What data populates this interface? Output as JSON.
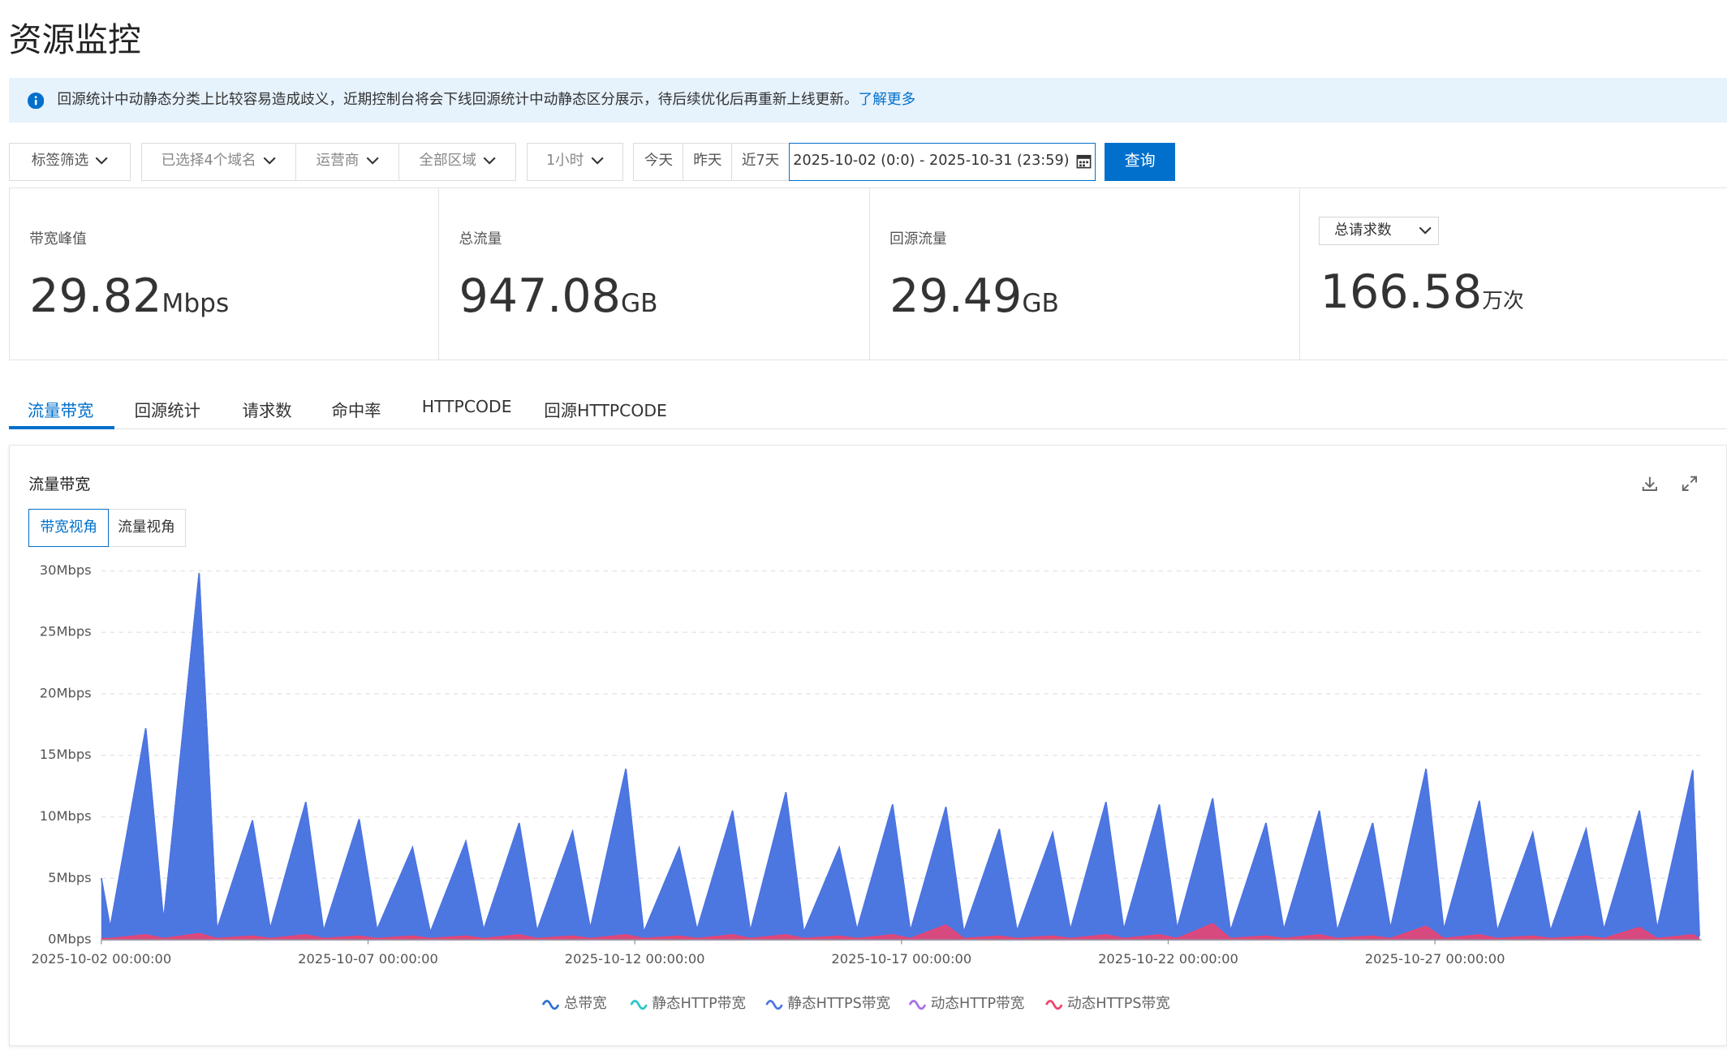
{
  "header": {
    "title": "资源监控"
  },
  "notice": {
    "text": "回源统计中动静态分类上比较容易造成歧义，近期控制台将会下线回源统计中动静态区分展示，待后续优化后再重新上线更新。",
    "link": "了解更多"
  },
  "filters": {
    "dropdowns": [
      "标签筛选",
      "已选择4个域名",
      "运营商",
      "全部区域",
      "1小时"
    ],
    "quick": [
      "今天",
      "昨天",
      "近7天"
    ],
    "date_range": "2025-10-02 (0:0) - 2025-10-31 (23:59)",
    "query_button": "查询"
  },
  "stats": [
    {
      "label": "带宽峰值",
      "value": 29.82,
      "unit": "Mbps"
    },
    {
      "label": "总流量",
      "value": 947.08,
      "unit": "GB"
    },
    {
      "label": "回源流量",
      "value": 29.49,
      "unit": "GB"
    },
    {
      "selector": "总请求数",
      "value": 166.58,
      "unit": "万次"
    }
  ],
  "tabs": [
    "流量带宽",
    "回源统计",
    "请求数",
    "命中率",
    "HTTPCODE",
    "回源HTTPCODE"
  ],
  "panel": {
    "title": "流量带宽",
    "views": [
      "带宽视角",
      "流量视角"
    ]
  },
  "chart_data": {
    "type": "area",
    "x": [
      "2025-10-02 00:00:00",
      "2025-10-02 04:00:00",
      "2025-10-02 20:00:00",
      "2025-10-03 04:00:00",
      "2025-10-03 20:00:00",
      "2025-10-04 04:00:00",
      "2025-10-04 20:00:00",
      "2025-10-05 04:00:00",
      "2025-10-05 20:00:00",
      "2025-10-06 04:00:00",
      "2025-10-06 20:00:00",
      "2025-10-07 04:00:00",
      "2025-10-07 20:00:00",
      "2025-10-08 04:00:00",
      "2025-10-08 20:00:00",
      "2025-10-09 04:00:00",
      "2025-10-09 20:00:00",
      "2025-10-10 04:00:00",
      "2025-10-10 20:00:00",
      "2025-10-11 04:00:00",
      "2025-10-11 20:00:00",
      "2025-10-12 04:00:00",
      "2025-10-12 20:00:00",
      "2025-10-13 04:00:00",
      "2025-10-13 20:00:00",
      "2025-10-14 04:00:00",
      "2025-10-14 20:00:00",
      "2025-10-15 04:00:00",
      "2025-10-15 20:00:00",
      "2025-10-16 04:00:00",
      "2025-10-16 20:00:00",
      "2025-10-17 04:00:00",
      "2025-10-17 20:00:00",
      "2025-10-18 04:00:00",
      "2025-10-18 20:00:00",
      "2025-10-19 04:00:00",
      "2025-10-19 20:00:00",
      "2025-10-20 04:00:00",
      "2025-10-20 20:00:00",
      "2025-10-21 04:00:00",
      "2025-10-21 20:00:00",
      "2025-10-22 04:00:00",
      "2025-10-22 20:00:00",
      "2025-10-23 04:00:00",
      "2025-10-23 20:00:00",
      "2025-10-24 04:00:00",
      "2025-10-24 20:00:00",
      "2025-10-25 04:00:00",
      "2025-10-25 20:00:00",
      "2025-10-26 04:00:00",
      "2025-10-26 20:00:00",
      "2025-10-27 04:00:00",
      "2025-10-27 20:00:00",
      "2025-10-28 04:00:00",
      "2025-10-28 20:00:00",
      "2025-10-29 04:00:00",
      "2025-10-29 20:00:00",
      "2025-10-30 04:00:00",
      "2025-10-30 20:00:00",
      "2025-10-31 04:00:00",
      "2025-10-31 20:00:00",
      "2025-10-31 23:00:00"
    ],
    "series": [
      {
        "name": "总带宽",
        "color": "#2f6fd0",
        "values": [
          5,
          1.0,
          17.2,
          1.5,
          29.82,
          0.8,
          9.7,
          0.9,
          11.2,
          0.7,
          9.8,
          0.8,
          7.5,
          0.6,
          8,
          0.8,
          9.5,
          0.7,
          8.8,
          0.9,
          13.9,
          0.6,
          7.5,
          0.8,
          10.5,
          0.7,
          12,
          0.6,
          7.5,
          0.8,
          11.0,
          0.7,
          10.8,
          0.6,
          9,
          0.7,
          8.7,
          0.8,
          11.2,
          0.8,
          11.0,
          0.9,
          11.5,
          0.7,
          9.5,
          0.8,
          10.5,
          0.7,
          9.5,
          0.9,
          13.9,
          0.8,
          11.3,
          0.7,
          8.7,
          0.7,
          9,
          0.8,
          10.5,
          0.9,
          13.8,
          0.3
        ]
      },
      {
        "name": "静态HTTP带宽",
        "color": "#25c7c7",
        "values": [
          0,
          0,
          0,
          0,
          0,
          0,
          0,
          0,
          0,
          0,
          0,
          0,
          0,
          0,
          0,
          0,
          0,
          0,
          0,
          0,
          0,
          0,
          0,
          0,
          0,
          0,
          0,
          0,
          0,
          0,
          0,
          0,
          0,
          0,
          0,
          0,
          0,
          0,
          0,
          0,
          0,
          0,
          0,
          0,
          0,
          0,
          0,
          0,
          0,
          0,
          0,
          0,
          0,
          0,
          0,
          0,
          0,
          0,
          0,
          0,
          0,
          0
        ]
      },
      {
        "name": "静态HTTPS带宽",
        "color": "#4d74e2",
        "values": [
          5,
          1.0,
          17.2,
          1.5,
          29.82,
          0.8,
          9.7,
          0.9,
          11.2,
          0.7,
          9.8,
          0.8,
          7.5,
          0.6,
          8,
          0.8,
          9.5,
          0.7,
          8.8,
          0.9,
          13.9,
          0.6,
          7.5,
          0.8,
          10.5,
          0.7,
          12,
          0.6,
          7.5,
          0.8,
          11.0,
          0.7,
          10.8,
          0.6,
          9,
          0.7,
          8.7,
          0.8,
          11.2,
          0.8,
          11.0,
          0.9,
          11.5,
          0.7,
          9.5,
          0.8,
          10.5,
          0.7,
          9.5,
          0.9,
          13.9,
          0.8,
          11.3,
          0.7,
          8.7,
          0.7,
          9,
          0.8,
          10.5,
          0.9,
          13.8,
          0.3
        ]
      },
      {
        "name": "动态HTTP带宽",
        "color": "#a66ee6",
        "values": [
          0,
          0,
          0,
          0,
          0,
          0,
          0,
          0,
          0,
          0,
          0,
          0,
          0,
          0,
          0,
          0,
          0,
          0,
          0,
          0,
          0,
          0,
          0,
          0,
          0,
          0,
          0,
          0,
          0,
          0,
          0,
          0,
          0,
          0,
          0,
          0,
          0,
          0,
          0,
          0,
          0,
          0,
          0,
          0,
          0,
          0,
          0,
          0,
          0,
          0,
          0,
          0,
          0,
          0,
          0,
          0,
          0,
          0,
          0,
          0,
          0,
          0
        ]
      },
      {
        "name": "动态HTTPS带宽",
        "color": "#f0426e",
        "values": [
          0.1,
          0.1,
          0.4,
          0.1,
          0.5,
          0.1,
          0.3,
          0.1,
          0.4,
          0.1,
          0.3,
          0.1,
          0.3,
          0.1,
          0.3,
          0.1,
          0.4,
          0.1,
          0.3,
          0.1,
          0.4,
          0.1,
          0.3,
          0.1,
          0.4,
          0.1,
          0.4,
          0.1,
          0.3,
          0.1,
          0.4,
          0.1,
          1.2,
          0.1,
          0.3,
          0.1,
          0.3,
          0.1,
          0.4,
          0.1,
          0.4,
          0.1,
          1.3,
          0.1,
          0.3,
          0.1,
          0.4,
          0.1,
          0.3,
          0.1,
          1.1,
          0.1,
          0.4,
          0.1,
          0.3,
          0.1,
          0.3,
          0.1,
          1.0,
          0.1,
          0.4,
          0.1
        ]
      }
    ],
    "xlim": [
      "2025-10-02 00:00:00",
      "2025-10-31 23:59:00"
    ],
    "xticks": [
      "2025-10-02 00:00:00",
      "2025-10-07 00:00:00",
      "2025-10-12 00:00:00",
      "2025-10-17 00:00:00",
      "2025-10-22 00:00:00",
      "2025-10-27 00:00:00"
    ],
    "ylim": [
      0,
      30
    ],
    "yticks": [
      {
        "value": 0,
        "label": "0Mbps"
      },
      {
        "value": 5,
        "label": "5Mbps"
      },
      {
        "value": 10,
        "label": "10Mbps"
      },
      {
        "value": 15,
        "label": "15Mbps"
      },
      {
        "value": 20,
        "label": "20Mbps"
      },
      {
        "value": 25,
        "label": "25Mbps"
      },
      {
        "value": 30,
        "label": "30Mbps"
      }
    ],
    "grid": true
  }
}
